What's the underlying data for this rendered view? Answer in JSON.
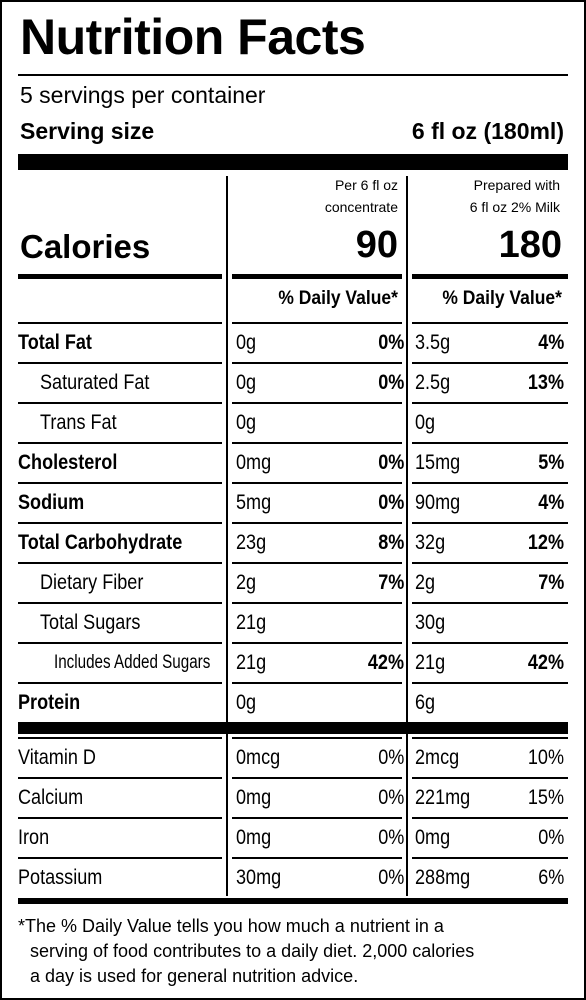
{
  "header": {
    "title": "Nutrition Facts",
    "servings": "5 servings per container",
    "serving_size_label": "Serving size",
    "serving_size_value": "6 fl oz (180ml)"
  },
  "calories": {
    "label": "Calories",
    "col1_header_line1": "Per 6 fl oz",
    "col1_header_line2": "concentrate",
    "col2_header_line1": "Prepared with",
    "col2_header_line2": "6 fl oz 2% Milk",
    "col1_value": "90",
    "col2_value": "180"
  },
  "daily_value_header": {
    "col1": "% Daily Value*",
    "col2": "% Daily Value*"
  },
  "nutrients": [
    {
      "name": "Total Fat",
      "style": "bold",
      "amount1": "0g",
      "dv1": "0%",
      "amount2": "3.5g",
      "dv2": "4%"
    },
    {
      "name": "Saturated Fat",
      "style": "ind1",
      "amount1": "0g",
      "dv1": "0%",
      "amount2": "2.5g",
      "dv2": "13%"
    },
    {
      "name": "Trans Fat",
      "style": "ind1",
      "amount1": "0g",
      "dv1": "",
      "amount2": "0g",
      "dv2": ""
    },
    {
      "name": "Cholesterol",
      "style": "bold",
      "amount1": "0mg",
      "dv1": "0%",
      "amount2": "15mg",
      "dv2": "5%"
    },
    {
      "name": "Sodium",
      "style": "bold",
      "amount1": "5mg",
      "dv1": "0%",
      "amount2": "90mg",
      "dv2": "4%"
    },
    {
      "name": "Total Carbohydrate",
      "style": "bold",
      "amount1": "23g",
      "dv1": "8%",
      "amount2": "32g",
      "dv2": "12%"
    },
    {
      "name": "Dietary Fiber",
      "style": "ind1",
      "amount1": "2g",
      "dv1": "7%",
      "amount2": "2g",
      "dv2": "7%"
    },
    {
      "name": "Total Sugars",
      "style": "ind1",
      "amount1": "21g",
      "dv1": "",
      "amount2": "30g",
      "dv2": ""
    },
    {
      "name": "Includes Added Sugars",
      "style": "ind2",
      "amount1": "21g",
      "dv1": "42%",
      "amount2": "21g",
      "dv2": "42%"
    },
    {
      "name": "Protein",
      "style": "bold",
      "amount1": "0g",
      "dv1": "",
      "amount2": "6g",
      "dv2": ""
    }
  ],
  "vitamins": [
    {
      "name": "Vitamin D",
      "amount1": "0mcg",
      "dv1": "0%",
      "amount2": "2mcg",
      "dv2": "10%"
    },
    {
      "name": "Calcium",
      "amount1": "0mg",
      "dv1": "0%",
      "amount2": "221mg",
      "dv2": "15%"
    },
    {
      "name": "Iron",
      "amount1": "0mg",
      "dv1": "0%",
      "amount2": "0mg",
      "dv2": "0%"
    },
    {
      "name": "Potassium",
      "amount1": "30mg",
      "dv1": "0%",
      "amount2": "288mg",
      "dv2": "6%"
    }
  ],
  "footnote": {
    "line1": "*The % Daily Value tells you how much a nutrient in a",
    "line2": "serving of food contributes to a daily diet. 2,000 calories",
    "line3": "a day is used for general nutrition advice."
  }
}
